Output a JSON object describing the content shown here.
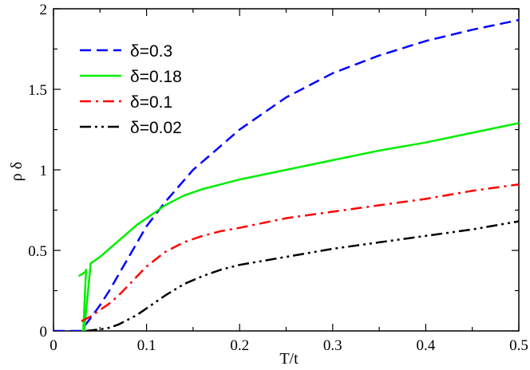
{
  "chart_data": {
    "type": "line",
    "title": "",
    "xlabel": "T/t",
    "ylabel": "ρ δ",
    "xlim": [
      0,
      0.5
    ],
    "ylim": [
      0,
      2
    ],
    "grid": false,
    "legend_position": "top-left",
    "x_ticks": [
      0,
      0.1,
      0.2,
      0.3,
      0.4,
      0.5
    ],
    "x_tick_labels": [
      "0",
      "0.1",
      "0.2",
      "0.3",
      "0.4",
      "0.5"
    ],
    "y_ticks": [
      0,
      0.5,
      1,
      1.5,
      2
    ],
    "y_tick_labels": [
      "0",
      "0.5",
      "1",
      "1.5",
      "2"
    ],
    "series": [
      {
        "name": "δ=0.3",
        "color": "#0000ff",
        "dash": "dashed",
        "x": [
          0,
          0.03,
          0.032,
          0.04,
          0.05,
          0.06,
          0.07,
          0.08,
          0.09,
          0.1,
          0.12,
          0.15,
          0.18,
          0.2,
          0.25,
          0.3,
          0.35,
          0.4,
          0.45,
          0.5
        ],
        "y": [
          0,
          0,
          0.02,
          0.08,
          0.16,
          0.25,
          0.35,
          0.45,
          0.55,
          0.65,
          0.8,
          1.0,
          1.15,
          1.25,
          1.45,
          1.6,
          1.71,
          1.8,
          1.87,
          1.93
        ]
      },
      {
        "name": "δ=0.18",
        "color": "#00ee00",
        "dash": "solid",
        "x": [
          0.027,
          0.035,
          0.035,
          0.032,
          0.033,
          0.04,
          0.05,
          0.06,
          0.07,
          0.08,
          0.09,
          0.1,
          0.11,
          0.12,
          0.14,
          0.16,
          0.18,
          0.2,
          0.25,
          0.3,
          0.35,
          0.4,
          0.45,
          0.5
        ],
        "y": [
          0.34,
          0.37,
          0.38,
          0.0,
          0.0,
          0.42,
          0.46,
          0.51,
          0.56,
          0.61,
          0.66,
          0.7,
          0.74,
          0.78,
          0.84,
          0.88,
          0.91,
          0.94,
          1.0,
          1.06,
          1.12,
          1.17,
          1.23,
          1.29
        ]
      },
      {
        "name": "δ=0.1",
        "color": "#ff0000",
        "dash": "dashdot",
        "x": [
          0.03,
          0.04,
          0.05,
          0.06,
          0.07,
          0.08,
          0.09,
          0.1,
          0.12,
          0.14,
          0.16,
          0.18,
          0.2,
          0.25,
          0.3,
          0.35,
          0.4,
          0.45,
          0.5
        ],
        "y": [
          0.06,
          0.09,
          0.13,
          0.17,
          0.22,
          0.28,
          0.34,
          0.4,
          0.49,
          0.55,
          0.59,
          0.62,
          0.64,
          0.7,
          0.74,
          0.78,
          0.82,
          0.87,
          0.91
        ]
      },
      {
        "name": "δ=0.02",
        "color": "#000000",
        "dash": "dashdotdot",
        "x": [
          0.035,
          0.05,
          0.06,
          0.07,
          0.08,
          0.09,
          0.1,
          0.11,
          0.12,
          0.14,
          0.16,
          0.18,
          0.2,
          0.25,
          0.3,
          0.35,
          0.4,
          0.45,
          0.5
        ],
        "y": [
          0.0,
          0.01,
          0.02,
          0.04,
          0.07,
          0.1,
          0.14,
          0.18,
          0.22,
          0.29,
          0.34,
          0.38,
          0.41,
          0.46,
          0.51,
          0.55,
          0.59,
          0.63,
          0.68
        ]
      }
    ]
  }
}
